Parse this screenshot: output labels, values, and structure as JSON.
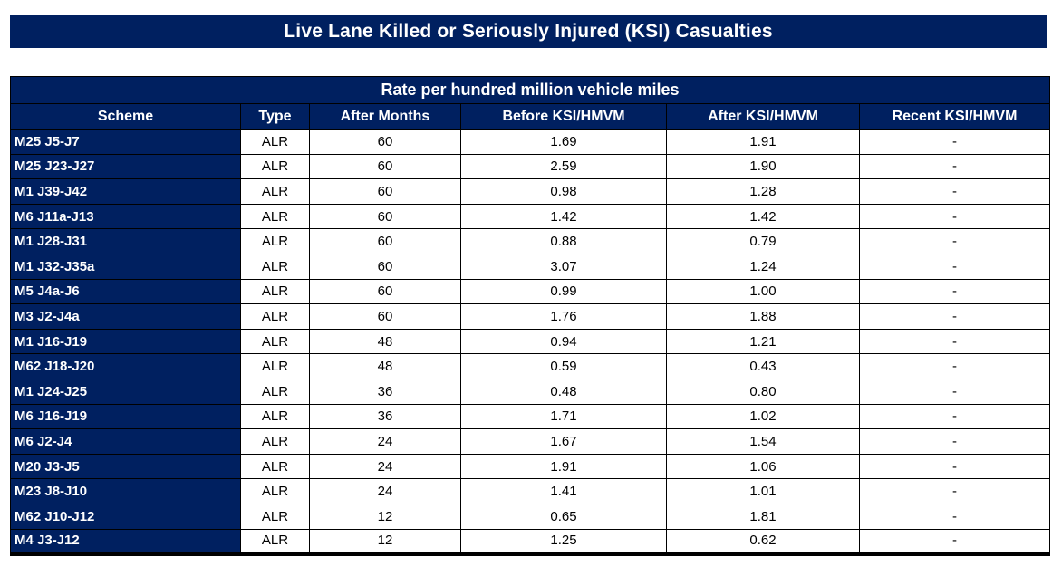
{
  "title": "Live Lane Killed or Seriously Injured (KSI) Casualties",
  "table": {
    "subtitle": "Rate per hundred million vehicle miles",
    "columns": [
      "Scheme",
      "Type",
      "After Months",
      "Before KSI/HMVM",
      "After KSI/HMVM",
      "Recent KSI/HMVM"
    ],
    "rows": [
      [
        "M25 J5-J7",
        "ALR",
        "60",
        "1.69",
        "1.91",
        "-"
      ],
      [
        "M25 J23-J27",
        "ALR",
        "60",
        "2.59",
        "1.90",
        "-"
      ],
      [
        "M1 J39-J42",
        "ALR",
        "60",
        "0.98",
        "1.28",
        "-"
      ],
      [
        "M6 J11a-J13",
        "ALR",
        "60",
        "1.42",
        "1.42",
        "-"
      ],
      [
        "M1 J28-J31",
        "ALR",
        "60",
        "0.88",
        "0.79",
        "-"
      ],
      [
        "M1 J32-J35a",
        "ALR",
        "60",
        "3.07",
        "1.24",
        "-"
      ],
      [
        "M5 J4a-J6",
        "ALR",
        "60",
        "0.99",
        "1.00",
        "-"
      ],
      [
        "M3 J2-J4a",
        "ALR",
        "60",
        "1.76",
        "1.88",
        "-"
      ],
      [
        "M1 J16-J19",
        "ALR",
        "48",
        "0.94",
        "1.21",
        "-"
      ],
      [
        "M62 J18-J20",
        "ALR",
        "48",
        "0.59",
        "0.43",
        "-"
      ],
      [
        "M1 J24-J25",
        "ALR",
        "36",
        "0.48",
        "0.80",
        "-"
      ],
      [
        "M6 J16-J19",
        "ALR",
        "36",
        "1.71",
        "1.02",
        "-"
      ],
      [
        "M6 J2-J4",
        "ALR",
        "24",
        "1.67",
        "1.54",
        "-"
      ],
      [
        "M20 J3-J5",
        "ALR",
        "24",
        "1.91",
        "1.06",
        "-"
      ],
      [
        "M23 J8-J10",
        "ALR",
        "24",
        "1.41",
        "1.01",
        "-"
      ],
      [
        "M62 J10-J12",
        "ALR",
        "12",
        "0.65",
        "1.81",
        "-"
      ],
      [
        "M4 J3-J12",
        "ALR",
        "12",
        "1.25",
        "0.62",
        "-"
      ]
    ],
    "cell_names": [
      "scheme-cell",
      "type-cell",
      "after-months-cell",
      "before-ksi-cell",
      "after-ksi-cell",
      "recent-ksi-cell"
    ]
  },
  "colors": {
    "navy": "#002060",
    "grid": "#000000",
    "cell_bg": "#ffffff",
    "header_text": "#ffffff",
    "data_text": "#000000"
  }
}
